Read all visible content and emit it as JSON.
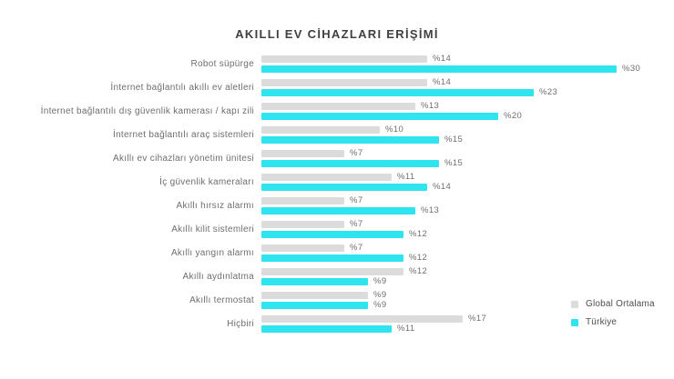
{
  "title": "AKILLI EV CİHAZLARI ERİŞİMİ",
  "value_prefix": "%",
  "colors": {
    "global": "#dcdcdc",
    "turkiye": "#2ee4ef",
    "title_text": "#3f3f3f",
    "label_text": "#6e6e6e",
    "legend_text": "#4e4e4e",
    "background": "#ffffff"
  },
  "legend": {
    "position": "bottom-right",
    "items": [
      {
        "label": "Global Ortalama",
        "color": "#dcdcdc"
      },
      {
        "label": "Türkiye",
        "color": "#2ee4ef"
      }
    ]
  },
  "chart_data": {
    "type": "bar",
    "orientation": "horizontal",
    "title": "AKILLI EV CİHAZLARI ERİŞİMİ",
    "xlabel": "",
    "ylabel": "",
    "xlim": [
      0,
      30
    ],
    "grid": false,
    "value_label_format": "%{value}",
    "categories": [
      "Robot süpürge",
      "İnternet bağlantılı akıllı ev aletleri",
      "İnternet bağlantılı dış güvenlik kamerası / kapı zili",
      "İnternet bağlantılı araç sistemleri",
      "Akıllı ev cihazları yönetim ünitesi",
      "İç güvenlik kameraları",
      "Akıllı hırsız alarmı",
      "Akıllı kilit sistemleri",
      "Akıllı yangın alarmı",
      "Akıllı aydınlatma",
      "Akıllı termostat",
      "Hiçbiri"
    ],
    "series": [
      {
        "name": "Global Ortalama",
        "color": "#dcdcdc",
        "values": [
          14,
          14,
          13,
          10,
          7,
          11,
          7,
          7,
          7,
          12,
          9,
          17
        ]
      },
      {
        "name": "Türkiye",
        "color": "#2ee4ef",
        "values": [
          30,
          23,
          20,
          15,
          15,
          14,
          13,
          12,
          12,
          9,
          9,
          11
        ]
      }
    ]
  }
}
